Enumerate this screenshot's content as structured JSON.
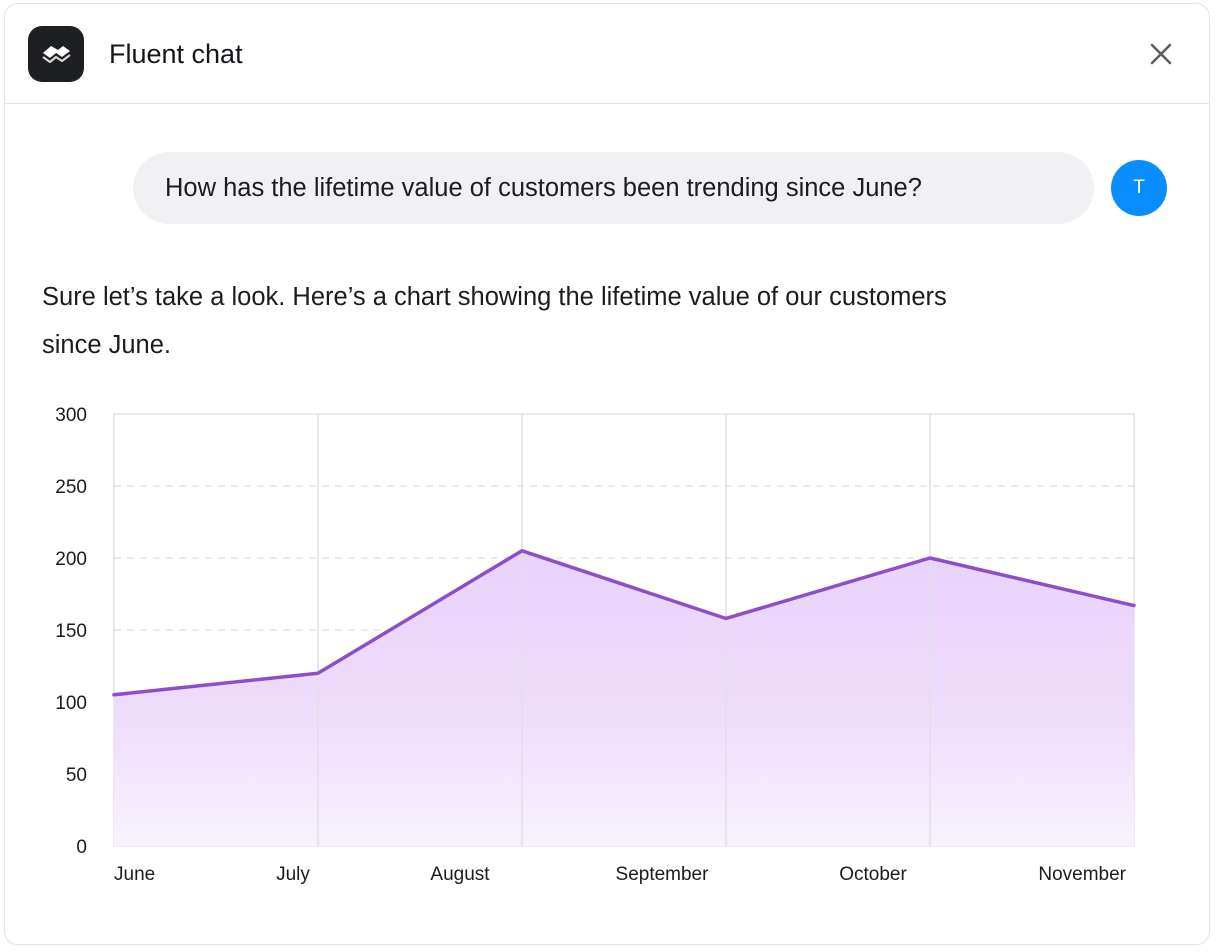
{
  "header": {
    "title": "Fluent chat",
    "logo_icon": "stacked-layers-icon",
    "close_icon": "close-icon"
  },
  "user_message": {
    "text": "How has the lifetime value of customers been trending since June?",
    "avatar_initial": "T",
    "avatar_color": "#0a8dff"
  },
  "assistant_message": {
    "text": "Sure let’s take a look. Here’s a chart showing the lifetime value of our customers since June."
  },
  "chart_data": {
    "type": "area",
    "categories": [
      "June",
      "July",
      "August",
      "September",
      "October",
      "November"
    ],
    "values": [
      105,
      120,
      205,
      158,
      200,
      167
    ],
    "ylim": [
      0,
      300
    ],
    "yticks": [
      0,
      50,
      100,
      150,
      200,
      250,
      300
    ],
    "grid": true,
    "line_color": "#8b4fc8",
    "fill_color": "#e9d6fb"
  }
}
